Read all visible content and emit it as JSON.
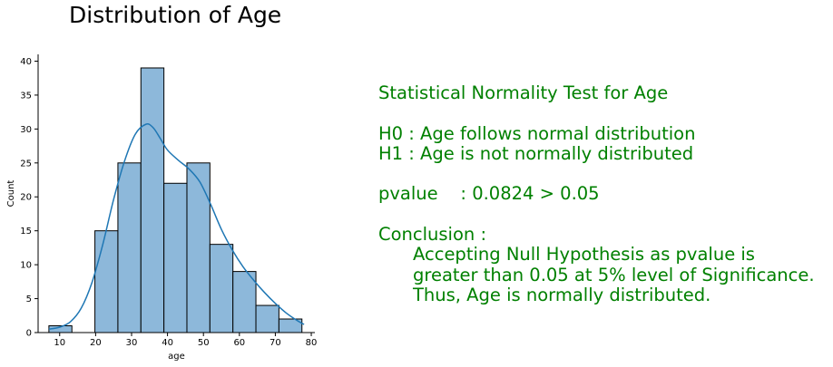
{
  "chart_data": {
    "type": "bar",
    "title": "Distribution of Age",
    "xlabel": "age",
    "ylabel": "Count",
    "xlim": [
      4,
      81
    ],
    "ylim": [
      0,
      41
    ],
    "xticks": [
      10,
      20,
      30,
      40,
      50,
      60,
      70,
      80
    ],
    "yticks": [
      0,
      5,
      10,
      15,
      20,
      25,
      30,
      35,
      40
    ],
    "bar_color": "#8db8da",
    "line_color": "#1f77b4",
    "bins": [
      {
        "x0": 7,
        "x1": 13.4,
        "count": 1
      },
      {
        "x0": 13.4,
        "x1": 19.8,
        "count": 0
      },
      {
        "x0": 19.8,
        "x1": 26.2,
        "count": 15
      },
      {
        "x0": 26.2,
        "x1": 32.6,
        "count": 25
      },
      {
        "x0": 32.6,
        "x1": 39,
        "count": 39
      },
      {
        "x0": 39,
        "x1": 45.4,
        "count": 22
      },
      {
        "x0": 45.4,
        "x1": 51.8,
        "count": 25
      },
      {
        "x0": 51.8,
        "x1": 58.2,
        "count": 13
      },
      {
        "x0": 58.2,
        "x1": 64.6,
        "count": 9
      },
      {
        "x0": 64.6,
        "x1": 71,
        "count": 4
      },
      {
        "x0": 71,
        "x1": 77.4,
        "count": 2
      }
    ],
    "kde": {
      "x": [
        7,
        10,
        13,
        16,
        19,
        22,
        25,
        28,
        31,
        34,
        36,
        38,
        40,
        43,
        46,
        49,
        52,
        55,
        58,
        61,
        64,
        67,
        70,
        73,
        76,
        78
      ],
      "y": [
        0.5,
        0.8,
        1.6,
        3.6,
        7.4,
        13,
        19.6,
        25.2,
        29.2,
        30.7,
        30.2,
        28.6,
        26.9,
        25.4,
        24.1,
        22.2,
        18.9,
        15.2,
        12.2,
        9.7,
        7.7,
        5.9,
        4.3,
        2.9,
        1.8,
        1.2
      ]
    }
  },
  "stats": {
    "heading": "Statistical Normality Test for Age",
    "h0": "H0 : Age follows normal distribution",
    "h1": "H1 : Age is not normally distributed",
    "pvalue": "pvalue    : 0.0824 > 0.05",
    "conclusion_label": "Conclusion :",
    "conclusion_lines": [
      "Accepting Null Hypothesis as pvalue is",
      "greater than 0.05 at 5% level of Significance.",
      "Thus, Age is normally distributed."
    ]
  }
}
